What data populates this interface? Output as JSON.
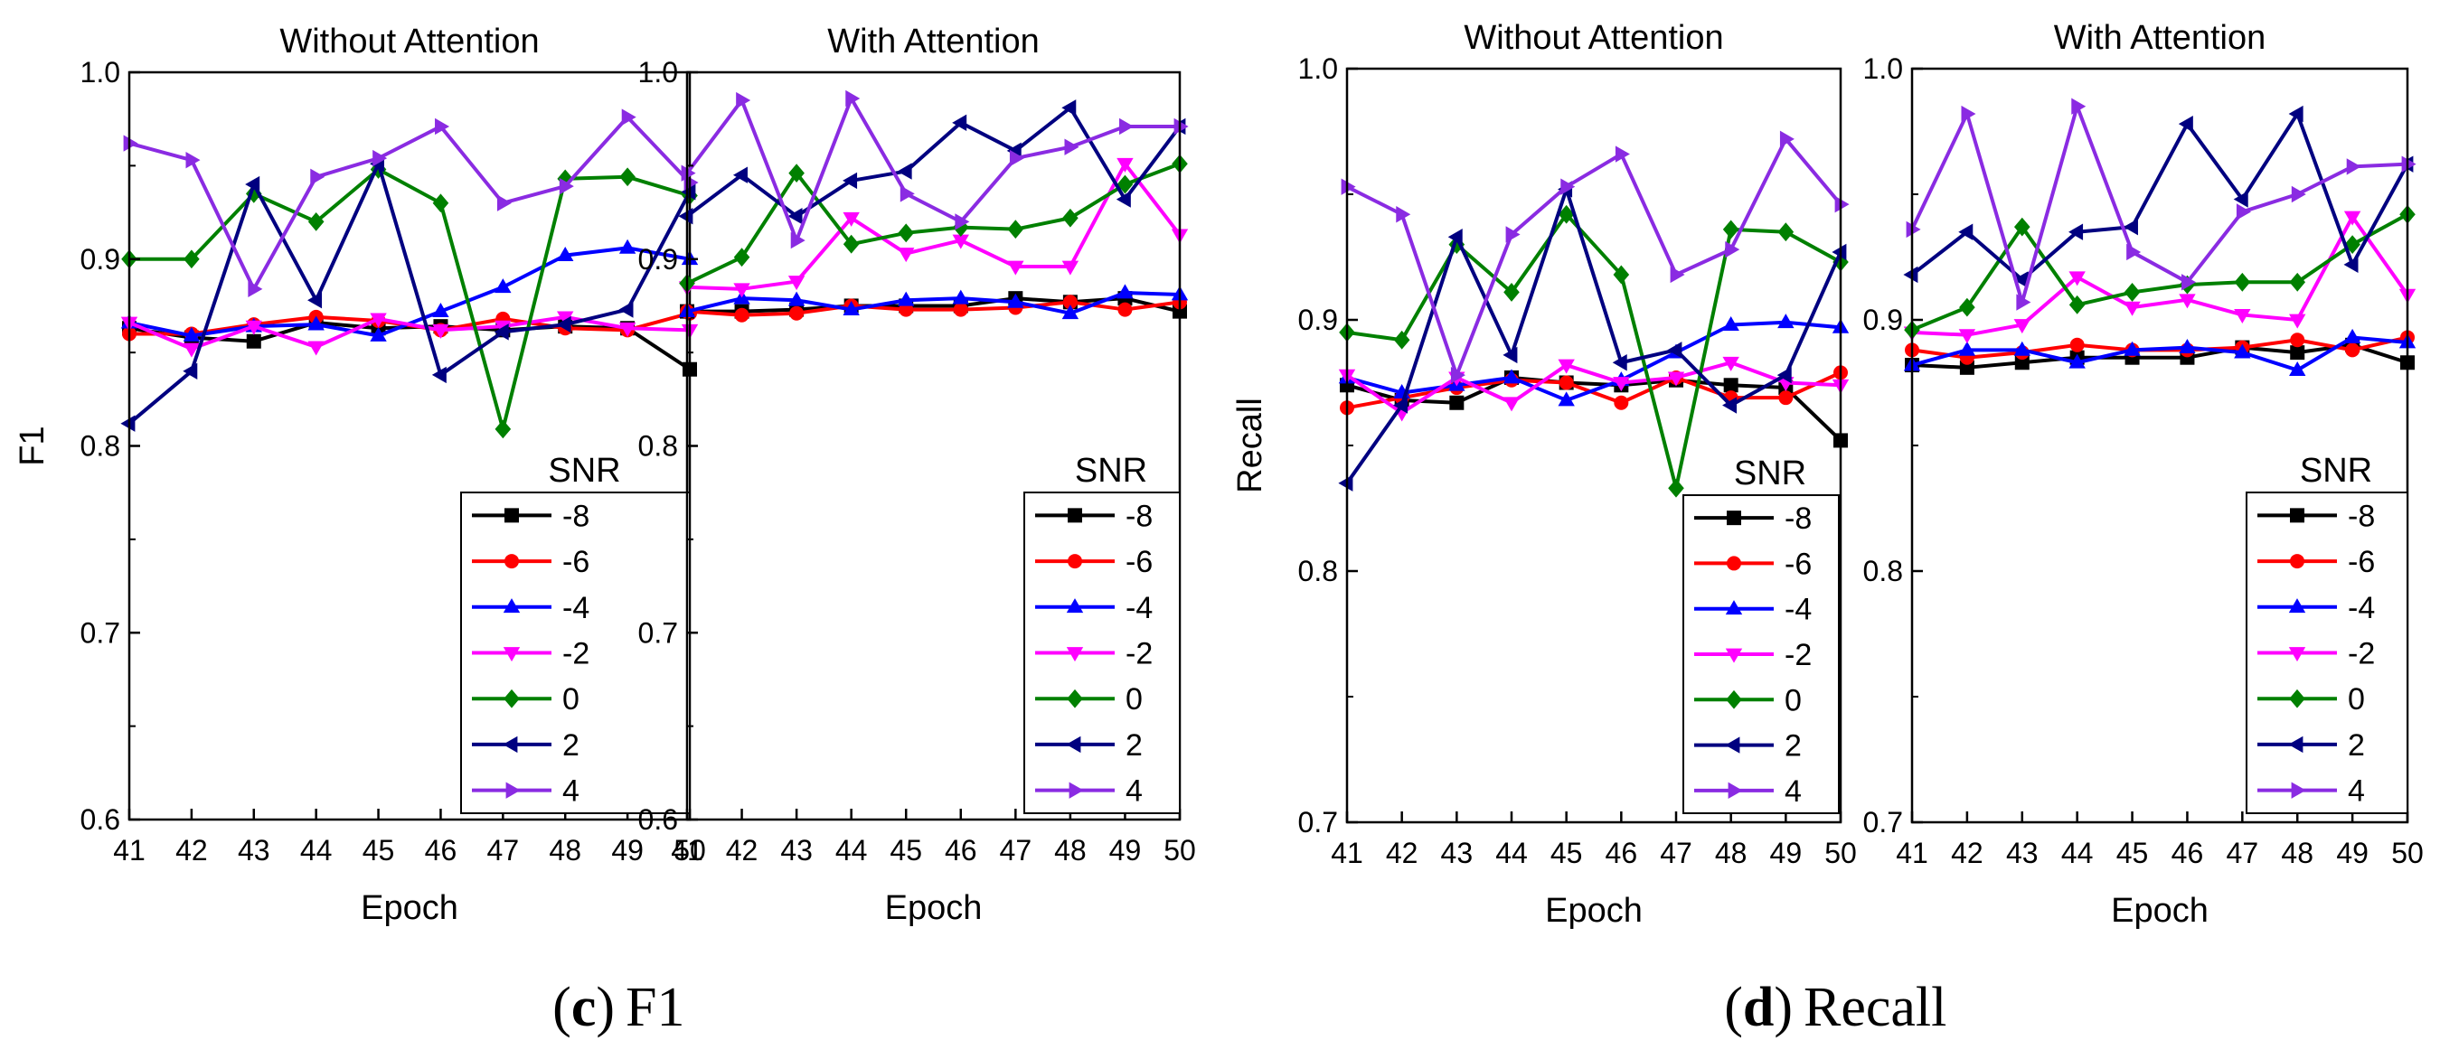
{
  "figure": {
    "captions": [
      {
        "letter": "c",
        "text": "F1"
      },
      {
        "letter": "d",
        "text": "Recall"
      }
    ]
  },
  "legend_title": "SNR",
  "series_styles": [
    {
      "name": "-8",
      "color": "#000000",
      "marker": "square"
    },
    {
      "name": "-6",
      "color": "#ff0000",
      "marker": "circle"
    },
    {
      "name": "-4",
      "color": "#0000ff",
      "marker": "triangle-up"
    },
    {
      "name": "-2",
      "color": "#ff00ff",
      "marker": "triangle-down"
    },
    {
      "name": "0",
      "color": "#008000",
      "marker": "diamond"
    },
    {
      "name": "2",
      "color": "#000080",
      "marker": "triangle-left"
    },
    {
      "name": "4",
      "color": "#8a2be2",
      "marker": "triangle-right"
    }
  ],
  "chart_data": [
    {
      "type": "line",
      "title": "Without Attention",
      "xlabel": "Epoch",
      "ylabel": "F1",
      "x": [
        41,
        42,
        43,
        44,
        45,
        46,
        47,
        48,
        49,
        50
      ],
      "xlim": [
        41,
        50
      ],
      "ylim": [
        0.6,
        1.0
      ],
      "yticks": [
        0.6,
        0.7,
        0.8,
        0.9,
        1.0
      ],
      "ytick_labels": [
        "0.6",
        "0.7",
        "0.8",
        "0.9",
        "1.0"
      ],
      "series": [
        {
          "name": "-8",
          "values": [
            0.863,
            0.858,
            0.856,
            0.866,
            0.863,
            0.864,
            0.862,
            0.864,
            0.863,
            0.841
          ]
        },
        {
          "name": "-6",
          "values": [
            0.86,
            0.86,
            0.865,
            0.869,
            0.867,
            0.862,
            0.868,
            0.863,
            0.862,
            0.871
          ]
        },
        {
          "name": "-4",
          "values": [
            0.866,
            0.859,
            0.864,
            0.865,
            0.859,
            0.872,
            0.885,
            0.902,
            0.906,
            0.9
          ]
        },
        {
          "name": "-2",
          "values": [
            0.866,
            0.852,
            0.864,
            0.853,
            0.868,
            0.862,
            0.864,
            0.869,
            0.863,
            0.862
          ]
        },
        {
          "name": "0",
          "values": [
            0.9,
            0.9,
            0.935,
            0.92,
            0.948,
            0.93,
            0.809,
            0.943,
            0.944,
            0.934
          ]
        },
        {
          "name": "2",
          "values": [
            0.812,
            0.84,
            0.94,
            0.878,
            0.951,
            0.838,
            0.861,
            0.865,
            0.873,
            0.936
          ]
        },
        {
          "name": "4",
          "values": [
            0.962,
            0.953,
            0.884,
            0.944,
            0.954,
            0.971,
            0.93,
            0.939,
            0.976,
            0.941
          ]
        }
      ]
    },
    {
      "type": "line",
      "title": "With Attention",
      "xlabel": "Epoch",
      "ylabel": "",
      "x": [
        41,
        42,
        43,
        44,
        45,
        46,
        47,
        48,
        49,
        50
      ],
      "xlim": [
        41,
        50
      ],
      "ylim": [
        0.6,
        1.0
      ],
      "yticks": [
        0.6,
        0.7,
        0.8,
        0.9,
        1.0
      ],
      "ytick_labels": [
        "0.6",
        "0.7",
        "0.8",
        "0.9",
        "1.0"
      ],
      "series": [
        {
          "name": "-8",
          "values": [
            0.872,
            0.872,
            0.873,
            0.875,
            0.875,
            0.875,
            0.879,
            0.877,
            0.879,
            0.872
          ]
        },
        {
          "name": "-6",
          "values": [
            0.872,
            0.87,
            0.871,
            0.875,
            0.873,
            0.873,
            0.874,
            0.877,
            0.873,
            0.877
          ]
        },
        {
          "name": "-4",
          "values": [
            0.872,
            0.879,
            0.878,
            0.873,
            0.878,
            0.879,
            0.877,
            0.871,
            0.882,
            0.881
          ]
        },
        {
          "name": "-2",
          "values": [
            0.885,
            0.884,
            0.888,
            0.922,
            0.903,
            0.91,
            0.896,
            0.896,
            0.951,
            0.913
          ]
        },
        {
          "name": "0",
          "values": [
            0.887,
            0.901,
            0.946,
            0.908,
            0.914,
            0.917,
            0.916,
            0.922,
            0.94,
            0.951
          ]
        },
        {
          "name": "2",
          "values": [
            0.923,
            0.945,
            0.923,
            0.942,
            0.947,
            0.973,
            0.958,
            0.981,
            0.932,
            0.971
          ]
        },
        {
          "name": "4",
          "values": [
            0.946,
            0.985,
            0.91,
            0.986,
            0.935,
            0.92,
            0.954,
            0.96,
            0.971,
            0.971
          ]
        }
      ]
    },
    {
      "type": "line",
      "title": "Without Attention",
      "xlabel": "Epoch",
      "ylabel": "Recall",
      "x": [
        41,
        42,
        43,
        44,
        45,
        46,
        47,
        48,
        49,
        50
      ],
      "xlim": [
        41,
        50
      ],
      "ylim": [
        0.7,
        1.0
      ],
      "yticks": [
        0.7,
        0.8,
        0.9,
        1.0
      ],
      "ytick_labels": [
        "0.7",
        "0.8",
        "0.9",
        "1.0"
      ],
      "series": [
        {
          "name": "-8",
          "values": [
            0.874,
            0.868,
            0.867,
            0.877,
            0.875,
            0.874,
            0.876,
            0.874,
            0.873,
            0.852
          ]
        },
        {
          "name": "-6",
          "values": [
            0.865,
            0.869,
            0.873,
            0.876,
            0.875,
            0.867,
            0.877,
            0.869,
            0.869,
            0.879
          ]
        },
        {
          "name": "-4",
          "values": [
            0.877,
            0.871,
            0.874,
            0.877,
            0.868,
            0.876,
            0.887,
            0.898,
            0.899,
            0.897
          ]
        },
        {
          "name": "-2",
          "values": [
            0.878,
            0.863,
            0.877,
            0.867,
            0.882,
            0.875,
            0.877,
            0.883,
            0.875,
            0.874
          ]
        },
        {
          "name": "0",
          "values": [
            0.895,
            0.892,
            0.93,
            0.911,
            0.942,
            0.918,
            0.833,
            0.936,
            0.935,
            0.923
          ]
        },
        {
          "name": "2",
          "values": [
            0.835,
            0.866,
            0.933,
            0.886,
            0.952,
            0.883,
            0.888,
            0.866,
            0.878,
            0.927
          ]
        },
        {
          "name": "4",
          "values": [
            0.953,
            0.942,
            0.878,
            0.934,
            0.953,
            0.966,
            0.918,
            0.928,
            0.972,
            0.946
          ]
        }
      ]
    },
    {
      "type": "line",
      "title": "With Attention",
      "xlabel": "Epoch",
      "ylabel": "",
      "x": [
        41,
        42,
        43,
        44,
        45,
        46,
        47,
        48,
        49,
        50
      ],
      "xlim": [
        41,
        50
      ],
      "ylim": [
        0.7,
        1.0
      ],
      "yticks": [
        0.7,
        0.8,
        0.9,
        1.0
      ],
      "ytick_labels": [
        "0.7",
        "0.8",
        "0.9",
        "1.0"
      ],
      "series": [
        {
          "name": "-8",
          "values": [
            0.882,
            0.881,
            0.883,
            0.885,
            0.885,
            0.885,
            0.889,
            0.887,
            0.89,
            0.883
          ]
        },
        {
          "name": "-6",
          "values": [
            0.888,
            0.885,
            0.887,
            0.89,
            0.888,
            0.888,
            0.889,
            0.892,
            0.888,
            0.893
          ]
        },
        {
          "name": "-4",
          "values": [
            0.882,
            0.888,
            0.888,
            0.883,
            0.888,
            0.889,
            0.887,
            0.88,
            0.893,
            0.891
          ]
        },
        {
          "name": "-2",
          "values": [
            0.895,
            0.894,
            0.898,
            0.917,
            0.905,
            0.908,
            0.902,
            0.9,
            0.941,
            0.91
          ]
        },
        {
          "name": "0",
          "values": [
            0.896,
            0.905,
            0.937,
            0.906,
            0.911,
            0.914,
            0.915,
            0.915,
            0.93,
            0.942
          ]
        },
        {
          "name": "2",
          "values": [
            0.918,
            0.935,
            0.916,
            0.935,
            0.937,
            0.978,
            0.948,
            0.982,
            0.922,
            0.962
          ]
        },
        {
          "name": "4",
          "values": [
            0.936,
            0.982,
            0.907,
            0.985,
            0.927,
            0.915,
            0.943,
            0.95,
            0.961,
            0.962
          ]
        }
      ]
    }
  ]
}
